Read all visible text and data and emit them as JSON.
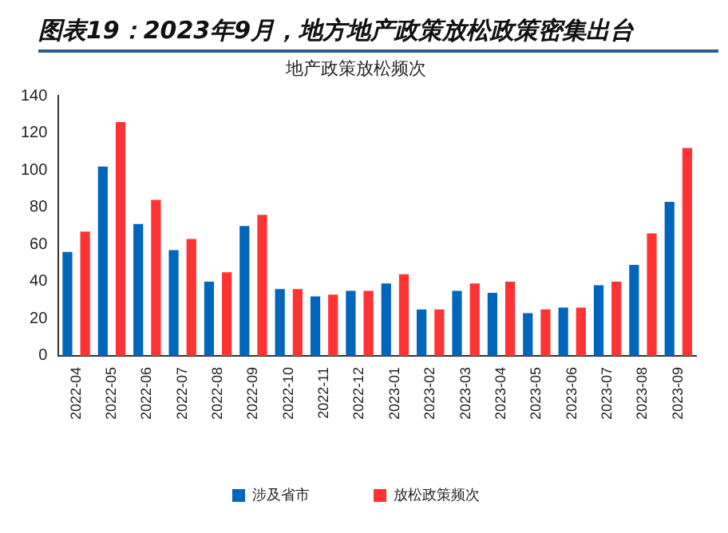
{
  "chart_data": {
    "type": "bar",
    "title": "图表19：2023年9月，地方地产政策放松政策密集出台",
    "subtitle": "地产政策放松频次",
    "categories": [
      "2022-04",
      "2022-05",
      "2022-06",
      "2022-07",
      "2022-08",
      "2022-09",
      "2022-10",
      "2022-11",
      "2022-12",
      "2023-01",
      "2023-02",
      "2023-03",
      "2023-04",
      "2023-05",
      "2023-06",
      "2023-07",
      "2023-08",
      "2023-09"
    ],
    "series": [
      {
        "name": "涉及省市",
        "color": "#0066bb",
        "values": [
          56,
          102,
          71,
          57,
          40,
          70,
          36,
          32,
          35,
          39,
          25,
          35,
          34,
          23,
          26,
          38,
          49,
          83
        ]
      },
      {
        "name": "放松政策频次",
        "color": "#ff3333",
        "values": [
          67,
          126,
          84,
          63,
          45,
          76,
          36,
          33,
          35,
          44,
          25,
          39,
          40,
          25,
          26,
          40,
          66,
          112
        ]
      }
    ],
    "ylim": [
      0,
      140
    ],
    "yticks": [
      0,
      20,
      40,
      60,
      80,
      100,
      120,
      140
    ],
    "grid": false,
    "legend": "bottom"
  }
}
